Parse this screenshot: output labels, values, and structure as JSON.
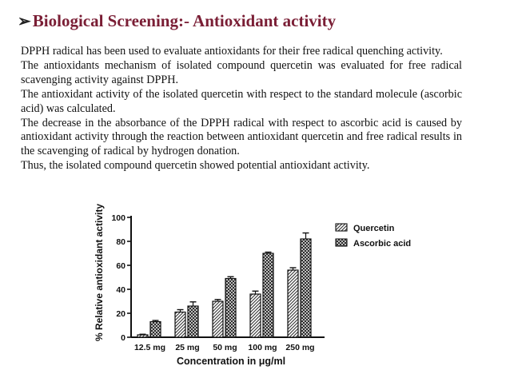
{
  "slide": {
    "title_arrow": "➢",
    "title": "Biological Screening:- Antioxidant activity",
    "paragraphs": [
      "DPPH radical has been used to evaluate antioxidants for their free radical quenching activity.",
      "The antioxidants mechanism of isolated compound quercetin was evaluated for free radical scavenging activity against DPPH.",
      "The antioxidant activity of the isolated quercetin with respect to the standard molecule (ascorbic acid) was calculated.",
      "The decrease in the absorbance of the DPPH radical with respect to ascorbic acid is caused by antioxidant activity through the reaction between antioxidant quercetin and free radical results in the scavenging of radical by hydrogen donation.",
      "Thus, the isolated compound quercetin showed potential antioxidant activity."
    ]
  },
  "colors": {
    "title": "#7a1e35",
    "text": "#111111",
    "axis": "#111111"
  },
  "chart_data": {
    "type": "bar",
    "title": "",
    "xlabel": "Concentration in μg/ml",
    "ylabel": "% Relative antioxidant activity",
    "ylim": [
      0,
      100
    ],
    "yticks": [
      0,
      20,
      40,
      60,
      80,
      100
    ],
    "categories": [
      "12.5 mg",
      "25 mg",
      "50 mg",
      "100 mg",
      "250 mg"
    ],
    "legend_position": "top-right",
    "error_bars": true,
    "series": [
      {
        "name": "Quercetin",
        "values": [
          2,
          21,
          30,
          36,
          56
        ],
        "errors": [
          0.5,
          2,
          1.5,
          2.5,
          2
        ]
      },
      {
        "name": "Ascorbic acid",
        "values": [
          13,
          26,
          49,
          70,
          82
        ],
        "errors": [
          1,
          3.5,
          1.5,
          1,
          5
        ]
      }
    ]
  }
}
